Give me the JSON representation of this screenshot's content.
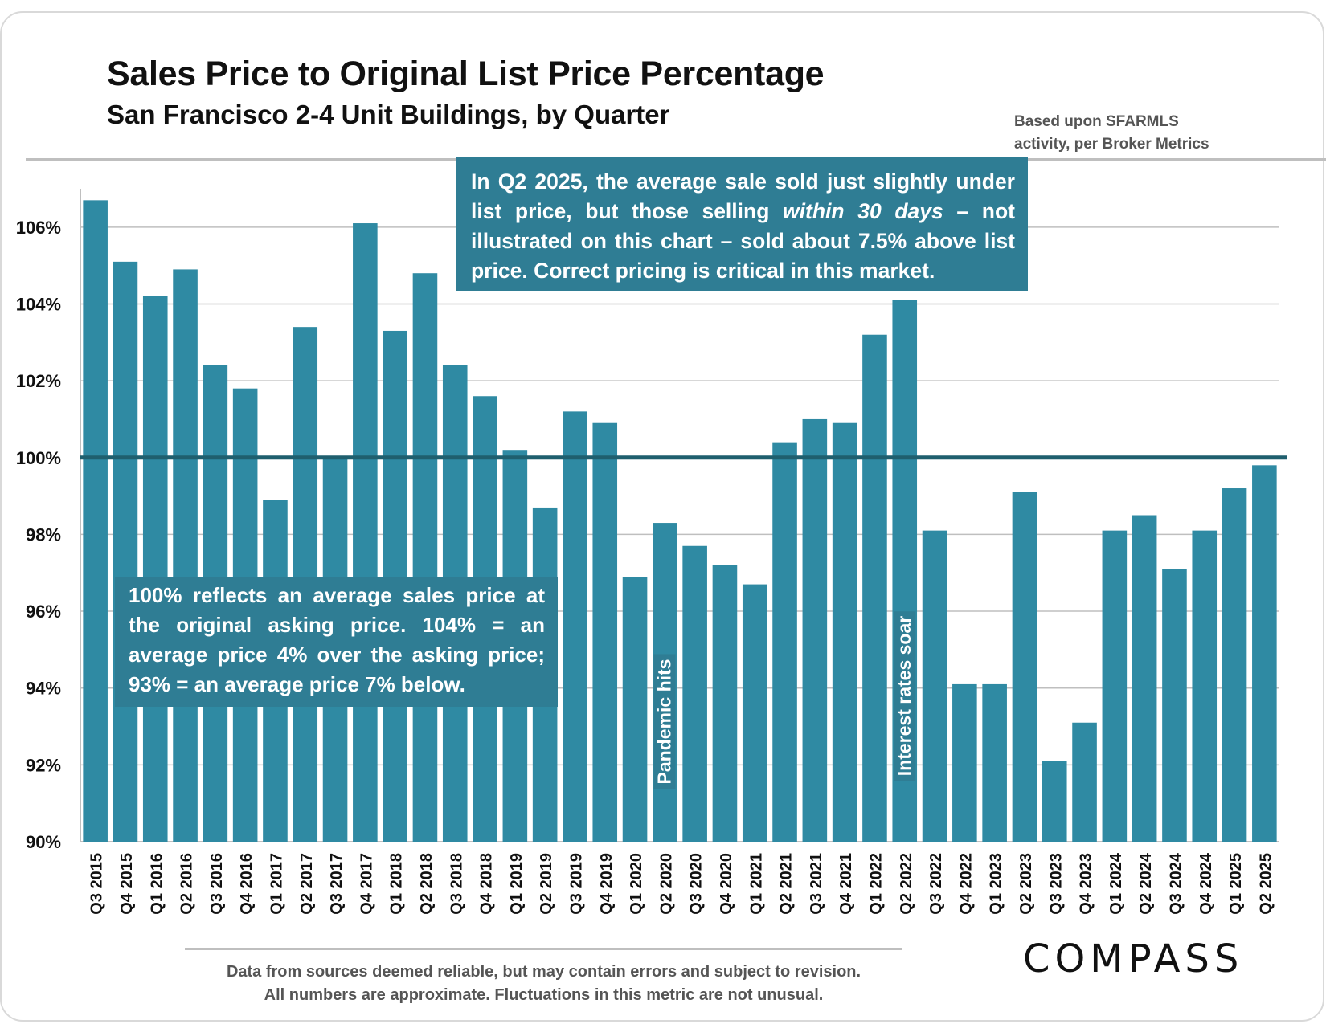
{
  "header": {
    "title": "Sales Price to Original List Price Percentage",
    "subtitle": "San Francisco 2-4 Unit Buildings, by Quarter",
    "source_line1": "Based upon SFARMLS",
    "source_line2": "activity, per Broker Metrics"
  },
  "annotations": {
    "top_callout": "In Q2 2025, the average sale sold just slightly under list price, but those selling within 30 days – not illustrated on this chart – sold about 7.5% above list price. Correct pricing is critical in this market.",
    "left_callout": "100% reflects an average sales price at the original asking price. 104% = an average price 4% over the asking price; 93% = an average price 7% below.",
    "pandemic": "Pandemic hits",
    "rates": "Interest rates soar"
  },
  "footer": {
    "disclaimer_line1": "Data from sources deemed reliable, but may contain errors and subject to revision.",
    "disclaimer_line2": "All numbers are approximate. Fluctuations in this metric are not unusual.",
    "logo": "COMPASS"
  },
  "colors": {
    "bar": "#2f8aa3",
    "reference_line": "#1f5f6e",
    "callout_bg": "#2f7d94"
  },
  "chart_data": {
    "type": "bar",
    "categories": [
      "Q3 2015",
      "Q4 2015",
      "Q1 2016",
      "Q2 2016",
      "Q3 2016",
      "Q4 2016",
      "Q1 2017",
      "Q2 2017",
      "Q3 2017",
      "Q4 2017",
      "Q1 2018",
      "Q2 2018",
      "Q3 2018",
      "Q4 2018",
      "Q1 2019",
      "Q2 2019",
      "Q3 2019",
      "Q4 2019",
      "Q1 2020",
      "Q2 2020",
      "Q3 2020",
      "Q4 2020",
      "Q1 2021",
      "Q2 2021",
      "Q3 2021",
      "Q4 2021",
      "Q1 2022",
      "Q2 2022",
      "Q3 2022",
      "Q4 2022",
      "Q1 2023",
      "Q2 2023",
      "Q3 2023",
      "Q4 2023",
      "Q1 2024",
      "Q2 2024",
      "Q3 2024",
      "Q4 2024",
      "Q1 2025",
      "Q2 2025"
    ],
    "values": [
      106.7,
      105.1,
      104.2,
      104.9,
      102.4,
      101.8,
      98.9,
      103.4,
      100.0,
      106.1,
      103.3,
      104.8,
      102.4,
      101.6,
      100.2,
      98.7,
      101.2,
      100.9,
      96.9,
      98.3,
      97.7,
      97.2,
      96.7,
      100.4,
      101.0,
      100.9,
      103.2,
      104.1,
      98.1,
      94.1,
      94.1,
      99.1,
      92.1,
      93.1,
      98.1,
      98.5,
      97.1,
      98.1,
      99.2,
      99.8
    ],
    "ylim": [
      90,
      107
    ],
    "yticks": [
      "90%",
      "92%",
      "94%",
      "96%",
      "98%",
      "100%",
      "102%",
      "104%",
      "106%"
    ],
    "ytick_values": [
      90,
      92,
      94,
      96,
      98,
      100,
      102,
      104,
      106
    ],
    "reference_value": 100,
    "grid": true,
    "legend": "none"
  }
}
